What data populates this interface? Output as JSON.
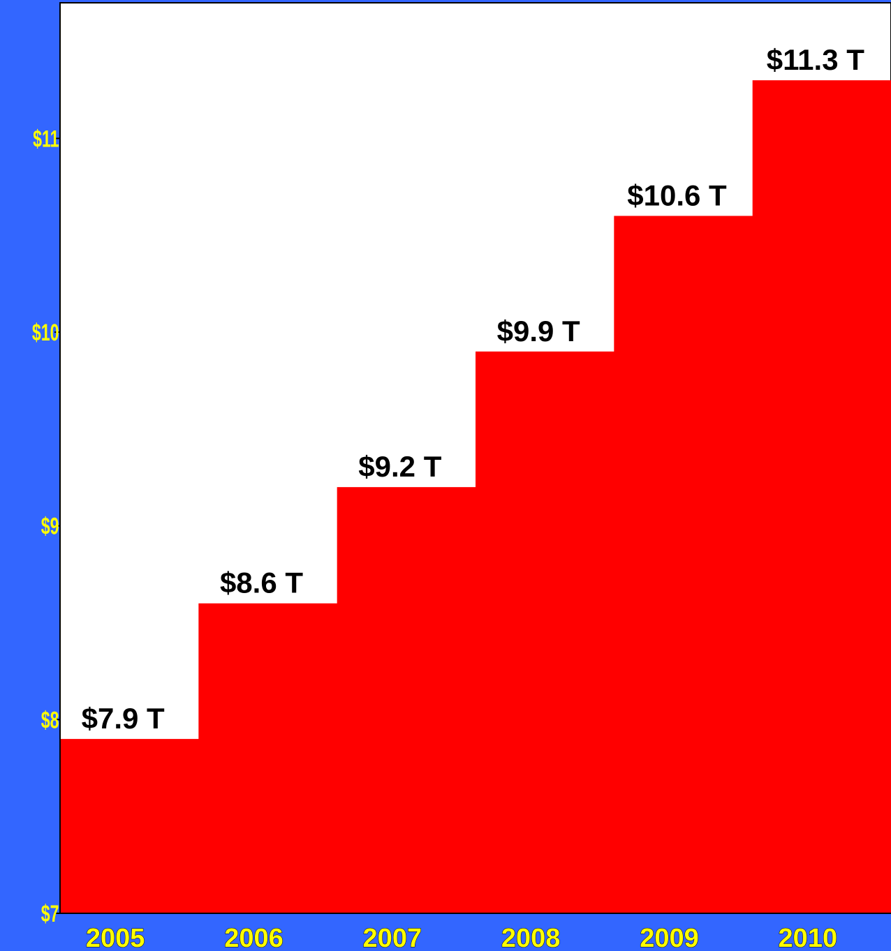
{
  "chart_data": {
    "type": "area",
    "step": true,
    "categories": [
      "2005",
      "2006",
      "2007",
      "2008",
      "2009",
      "2010"
    ],
    "values": [
      7.9,
      8.6,
      9.2,
      9.9,
      10.6,
      11.3
    ],
    "data_labels": [
      "$7.9 T",
      "$8.6 T",
      "$9.2 T",
      "$9.9 T",
      "$10.6 T",
      "$11.3 T"
    ],
    "yticks": [
      7,
      8,
      9,
      10,
      11
    ],
    "ytick_labels": [
      "$7",
      "$8",
      "$9",
      "$10",
      "$11"
    ],
    "ylim": [
      7,
      11.7
    ],
    "grid": false,
    "title": "",
    "xlabel": "",
    "ylabel": ""
  },
  "colors": {
    "background": "#3366ff",
    "plot_area": "#ffffff",
    "fill": "#ff0000",
    "tick_labels": "#ffff00",
    "data_labels": "#000000"
  }
}
